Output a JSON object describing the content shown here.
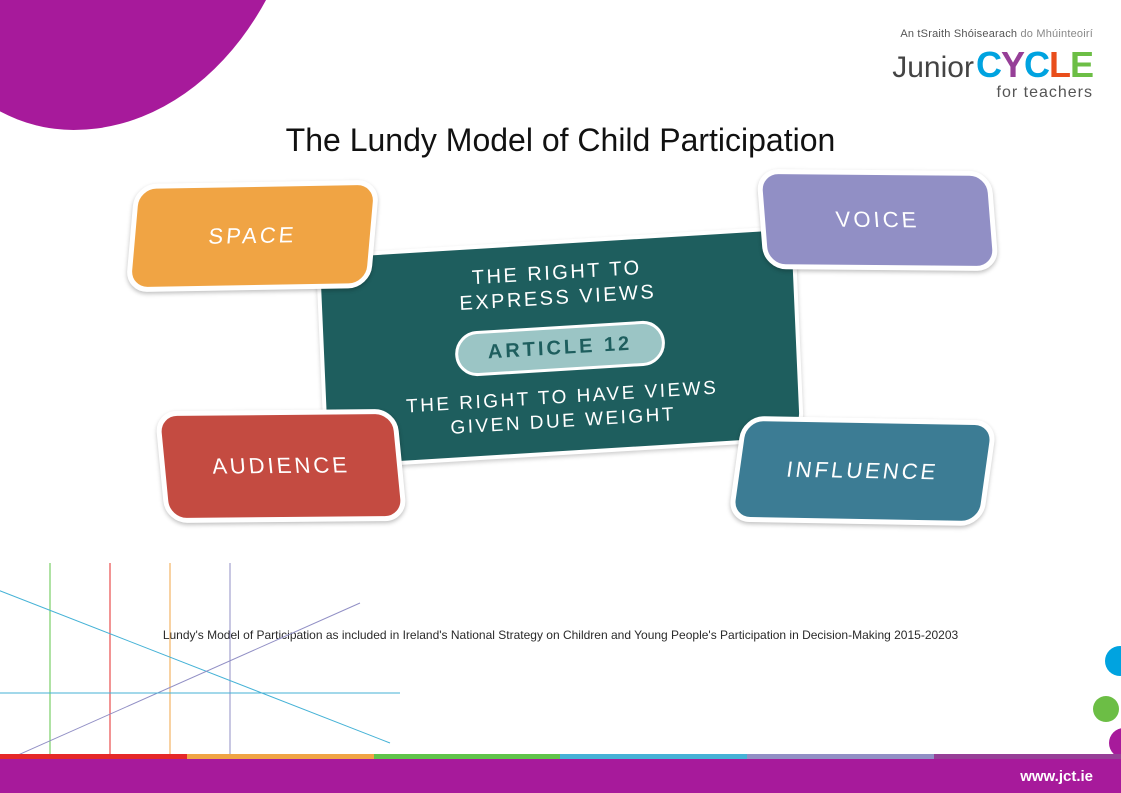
{
  "colors": {
    "blob_purple": "#A71A9B",
    "center_teal": "#1E5E5E",
    "pill_bg": "#9BC5C5",
    "space_orange": "#F0A444",
    "voice_lavender": "#918FC5",
    "audience_red": "#C44B41",
    "influence_teal": "#3C7C94",
    "line1": "#E52828",
    "line2": "#F0A444",
    "line3": "#5FC44A",
    "line4": "#45B2D6",
    "line5": "#918FC5",
    "dot_blue": "#00A3E0",
    "dot_green": "#6CBE45",
    "dot_purple": "#A71A9B",
    "cycle_c": "#00A3E0",
    "cycle_y": "#963F97",
    "cycle_cl": "#E94E1B",
    "cycle_e": "#6CBE45",
    "stripe": [
      "#E52828",
      "#F0A444",
      "#5FC44A",
      "#45B2D6",
      "#918FC5",
      "#963F97"
    ]
  },
  "logo": {
    "tagline_prefix": "An tSraith Shóisearach ",
    "tagline_suffix": "do Mhúinteoirí",
    "word1": "Junior",
    "word2_letters": [
      "C",
      "Y",
      "C",
      "L",
      "E"
    ],
    "sub": "for teachers"
  },
  "title": "The Lundy Model of Child Participation",
  "center": {
    "line1": "THE RIGHT TO",
    "line2": "EXPRESS VIEWS",
    "pill": "ARTICLE 12",
    "line3": "THE RIGHT TO HAVE VIEWS",
    "line4": "GIVEN DUE WEIGHT"
  },
  "cards": {
    "space": "SPACE",
    "voice": "VOICE",
    "audience": "AUDIENCE",
    "influence": "INFLUENCE"
  },
  "caption": "Lundy's Model of Participation as included in Ireland's National Strategy on Children and Young People's Participation in Decision-Making 2015-20203",
  "footer_url": "www.jct.ie"
}
